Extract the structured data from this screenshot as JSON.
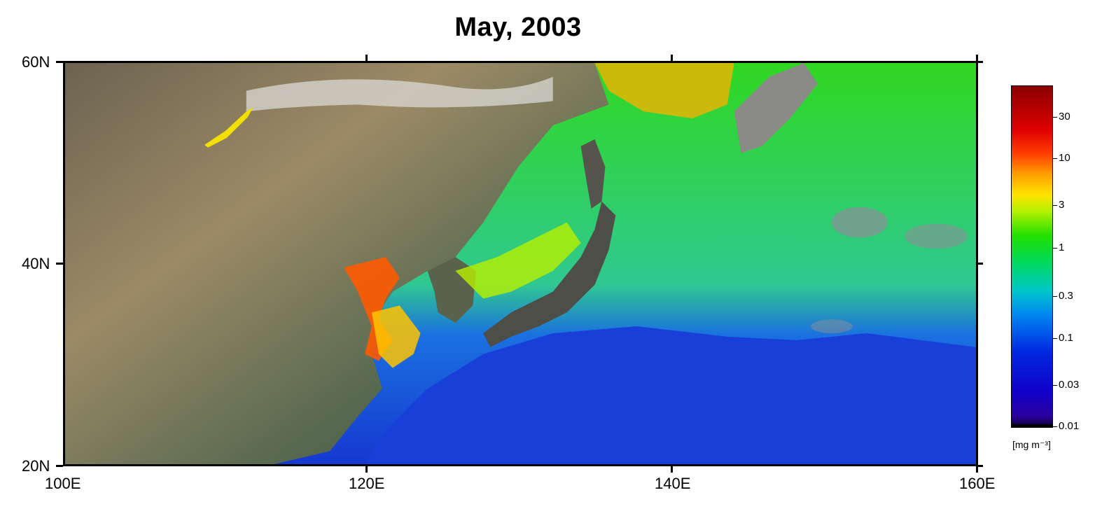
{
  "title": "May, 2003",
  "map": {
    "region": "East Asia and Northwest Pacific",
    "lat_range": [
      "20N",
      "60N"
    ],
    "lon_range": [
      "100E",
      "160E"
    ]
  },
  "axes": {
    "left_labels": [
      "60N",
      "40N",
      "20N"
    ],
    "bottom_labels": [
      "100E",
      "120E",
      "140E",
      "160E"
    ]
  },
  "colorbar": {
    "scale": "log",
    "labels": [
      "30",
      "10",
      "3",
      "1",
      "0.3",
      "0.1",
      "0.03",
      "0.01"
    ],
    "unit": "[mg m⁻³]"
  },
  "colors": {
    "ocean_low": "#1f3fd0",
    "ocean_mid": "#20d000",
    "ocean_high": "#ff4000",
    "land": "#6e6a52"
  }
}
